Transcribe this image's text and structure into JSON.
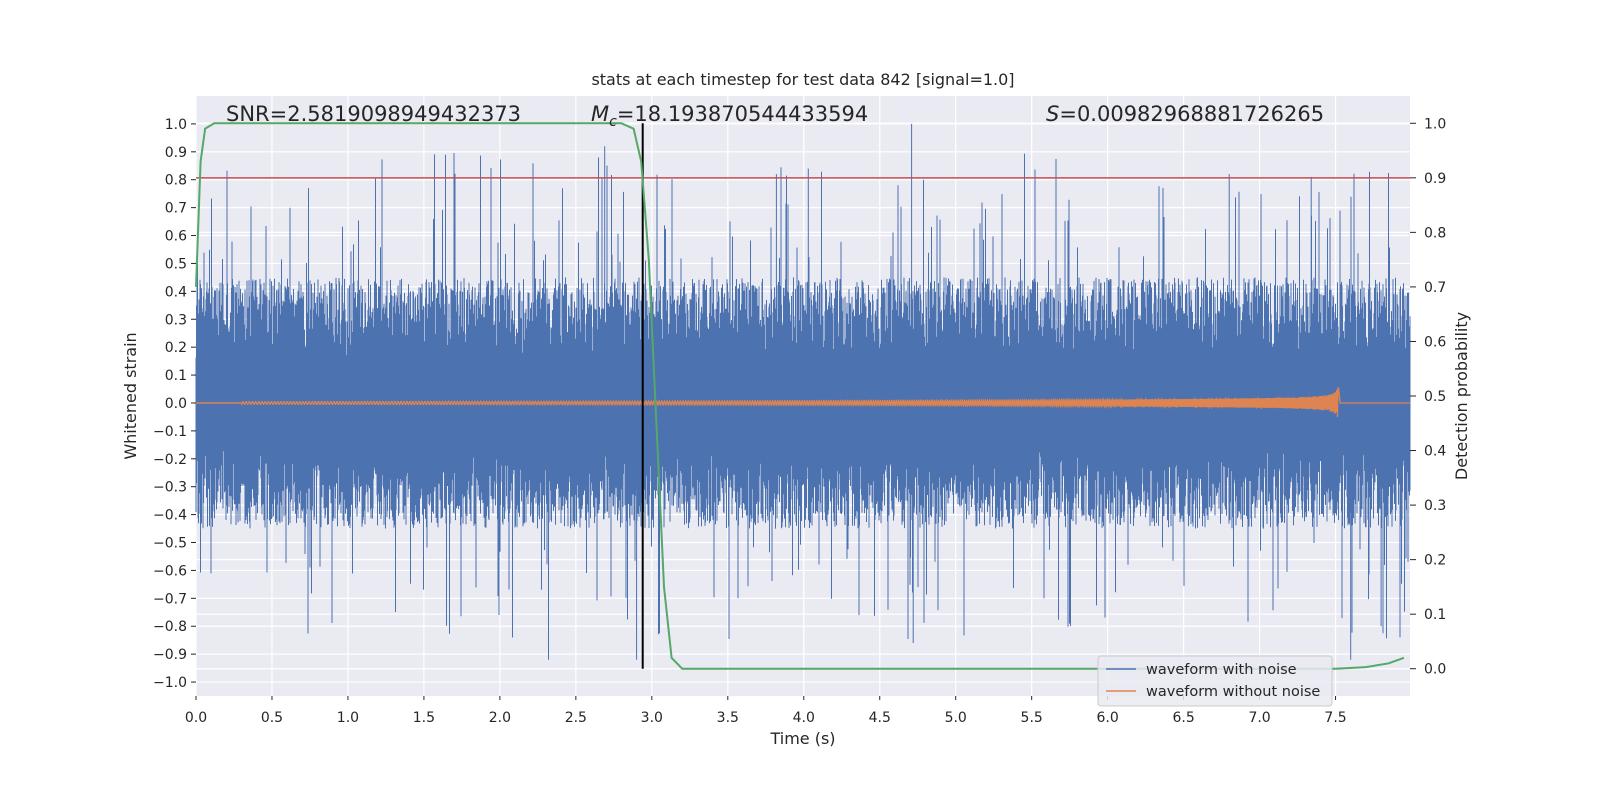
{
  "chart_data": {
    "type": "line",
    "title": "stats at each timestep for test data 842 [signal=1.0]",
    "xlabel": "Time (s)",
    "ylabel": "Whitened strain",
    "y2label": "Detection probability",
    "xlim": [
      0.0,
      7.99
    ],
    "ylim": [
      -1.05,
      1.1
    ],
    "y2lim": [
      -0.05,
      1.05
    ],
    "xticks": [
      "0.0",
      "0.5",
      "1.0",
      "1.5",
      "2.0",
      "2.5",
      "3.0",
      "3.5",
      "4.0",
      "4.5",
      "5.0",
      "5.5",
      "6.0",
      "6.5",
      "7.0",
      "7.5"
    ],
    "yticks": [
      "1.0",
      "0.9",
      "0.8",
      "0.7",
      "0.6",
      "0.5",
      "0.4",
      "0.3",
      "0.2",
      "0.1",
      "0.0",
      "−0.1",
      "−0.2",
      "−0.3",
      "−0.4",
      "−0.5",
      "−0.6",
      "−0.7",
      "−0.8",
      "−0.9",
      "−1.0"
    ],
    "y2ticks": [
      "1.0",
      "0.9",
      "0.8",
      "0.7",
      "0.6",
      "0.5",
      "0.4",
      "0.3",
      "0.2",
      "0.1",
      "0.0"
    ],
    "grid": true,
    "legend_position": "lower-right",
    "stats": {
      "snr_label": "SNR=2.5819098949432373",
      "mc_symbol": "M",
      "mc_sub": "c",
      "mc_value": "=18.193870544433594",
      "s_symbol": "S",
      "s_value": "=0.00982968881726265"
    },
    "series": [
      {
        "name": "waveform with noise",
        "color": "#4c72b0",
        "envelope": {
          "typical_max": 0.45,
          "typical_min": -0.45,
          "peak_max": 1.0,
          "peak_min": -0.92
        }
      },
      {
        "name": "waveform without noise",
        "color": "#dd8452",
        "chirp": {
          "start_time": 0.0,
          "merger_time": 7.52,
          "final_amplitude": 0.12
        }
      },
      {
        "name": "detection probability",
        "color": "#55a868",
        "x": [
          0.0,
          0.03,
          0.06,
          0.12,
          0.2,
          2.8,
          2.88,
          2.93,
          2.98,
          3.03,
          3.08,
          3.13,
          3.2,
          3.3,
          7.5,
          7.7,
          7.85,
          7.95
        ],
        "y": [
          0.7,
          0.93,
          0.99,
          1.0,
          1.0,
          1.0,
          0.99,
          0.93,
          0.75,
          0.45,
          0.15,
          0.02,
          0.0,
          0.0,
          0.0,
          0.003,
          0.01,
          0.02
        ]
      }
    ],
    "threshold": {
      "value": 0.9,
      "axis": "right",
      "color": "#c44e52"
    },
    "event_marker": {
      "x": 2.94,
      "color": "#000000"
    }
  }
}
